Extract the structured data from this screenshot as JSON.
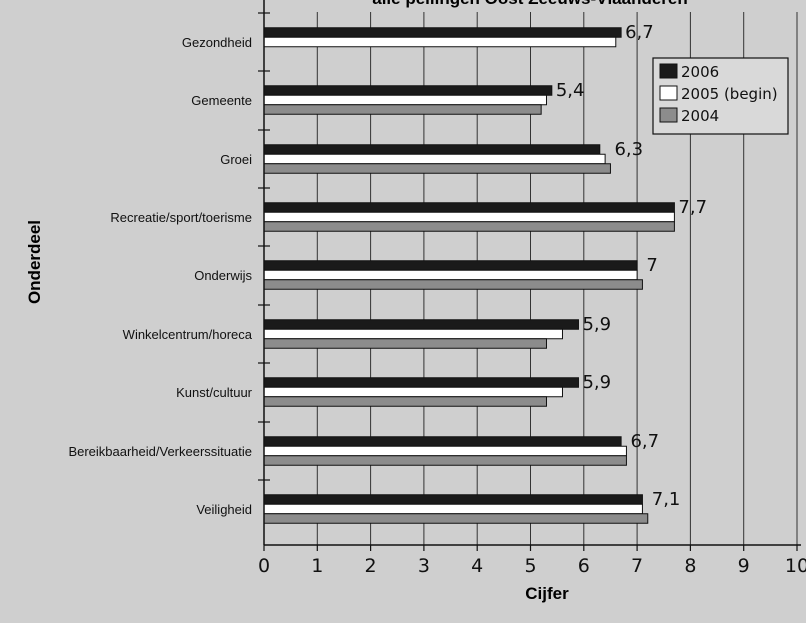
{
  "chart_data": {
    "type": "bar",
    "orientation": "horizontal",
    "title": "alle peilingen Oost Zeeuws-Vlaanderen",
    "xlabel": "Cijfer",
    "ylabel": "Onderdeel",
    "xlim": [
      0,
      10
    ],
    "x_ticks": [
      "0",
      "1",
      "2",
      "3",
      "4",
      "5",
      "6",
      "7",
      "8",
      "9",
      "10"
    ],
    "grid": "vertical",
    "legend_position": "top-right",
    "categories": [
      "Gezondheid",
      "Gemeente",
      "Groei",
      "Recreatie/sport/toerisme",
      "Onderwijs",
      "Winkelcentrum/horeca",
      "Kunst/cultuur",
      "Bereikbaarheid/Verkeerssituatie",
      "Veiligheid"
    ],
    "series": [
      {
        "name": "2006",
        "color": "#1a1a1a",
        "values": [
          6.7,
          5.4,
          6.3,
          7.7,
          7.0,
          5.9,
          5.9,
          6.7,
          7.1
        ]
      },
      {
        "name": "2005 (begin)",
        "color": "#ffffff",
        "values": [
          6.6,
          5.3,
          6.4,
          7.7,
          7.0,
          5.6,
          5.6,
          6.8,
          7.1
        ]
      },
      {
        "name": "2004",
        "color": "#8c8c8c",
        "values": [
          null,
          5.2,
          6.5,
          7.7,
          7.1,
          5.3,
          5.3,
          6.8,
          7.2
        ]
      }
    ],
    "data_labels": [
      "6,7",
      "5,4",
      "6,3",
      "7,7",
      "7",
      "5,9",
      "5,9",
      "6,7",
      "7,1"
    ]
  }
}
